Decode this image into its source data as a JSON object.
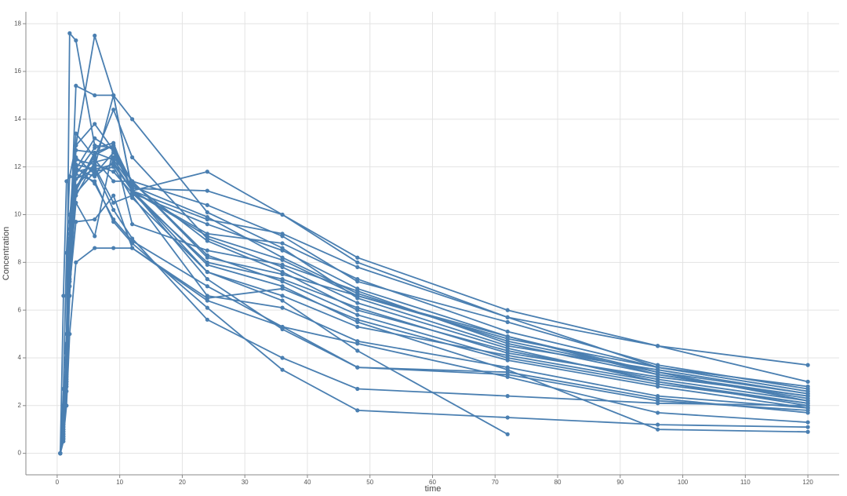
{
  "chart_data": {
    "type": "line",
    "x_label": "time",
    "y_label": "Concentration",
    "color": "#4a7fb1",
    "grid": true,
    "x": [
      0.5,
      1,
      1.5,
      2,
      3,
      6,
      9,
      12,
      24,
      36,
      48,
      72,
      96,
      120
    ],
    "xlim": [
      -5,
      125
    ],
    "xticks": [
      0,
      10,
      20,
      30,
      40,
      50,
      60,
      70,
      80,
      90,
      100,
      110,
      120
    ],
    "ylim": [
      -0.9,
      18.5
    ],
    "yticks": [
      0,
      2,
      4,
      6,
      8,
      10,
      12,
      14,
      16,
      18
    ],
    "series": [
      {
        "values": [
          0,
          6.6,
          11.4,
          11.6,
          11.5,
          12.3,
          11.4,
          11.4,
          8.2,
          7.5,
          6.6,
          4.9,
          3.3,
          2.4
        ]
      },
      {
        "values": [
          0,
          2.7,
          8.4,
          11.6,
          12.9,
          17.5,
          15,
          14,
          10.1,
          8.6,
          6.5,
          4.5,
          3.5,
          2.5
        ]
      },
      {
        "values": [
          0,
          1.0,
          3.6,
          8.4,
          15.4,
          15,
          15,
          11,
          9.8,
          9.2,
          7.8,
          5.7,
          3.6,
          2.8
        ]
      },
      {
        "values": [
          0,
          0.6,
          4.6,
          17.6,
          17.3,
          12.9,
          12.8,
          9.6,
          8.5,
          7.9,
          6.8,
          4.6,
          3.3,
          2.3
        ]
      },
      {
        "values": [
          0,
          2.0,
          3.3,
          9.7,
          13.4,
          12.4,
          14.4,
          12.4,
          9.0,
          7.8,
          6.3,
          4.4,
          3.0,
          2.1
        ]
      },
      {
        "values": [
          0,
          1.5,
          2.8,
          6.6,
          11.2,
          12.0,
          15,
          11,
          7.6,
          6.6,
          5.3,
          4.1,
          3.0,
          2.0
        ]
      },
      {
        "values": [
          0,
          0.5,
          2.6,
          8,
          12.7,
          12.6,
          12.9,
          10.9,
          8.0,
          7.3,
          6.1,
          4.2,
          3.2,
          2.4
        ]
      },
      {
        "values": [
          0,
          1.2,
          4,
          9,
          11.9,
          11.6,
          12.2,
          11,
          11.8,
          10,
          8.2,
          6,
          4.5,
          3.7
        ]
      },
      {
        "values": [
          0,
          0.8,
          3,
          7,
          9.7,
          9.8,
          10.8,
          8.6,
          6.5,
          6.9,
          5.6,
          3.9,
          2.8,
          1.9
        ]
      },
      {
        "values": [
          0,
          0.7,
          2,
          5,
          8,
          8.6,
          8.6,
          8.6,
          6.4,
          5.3,
          3.6,
          3.4,
          2.3,
          1.7
        ]
      },
      {
        "values": [
          0,
          1.1,
          4.5,
          9.2,
          12.9,
          13.8,
          12.7,
          11.4,
          10.4,
          9.1,
          7.2,
          5.5,
          3.7,
          2.7
        ]
      },
      {
        "values": [
          0,
          0.9,
          3.8,
          8.8,
          12.1,
          11.9,
          10.2,
          9.0,
          5.6,
          4.0,
          2.7,
          2.4,
          2.1,
          2.0
        ]
      },
      {
        "values": [
          0,
          1.3,
          5,
          10,
          11.7,
          11.4,
          9.7,
          8.8,
          6.1,
          3.5,
          1.8,
          1.5,
          1.2,
          1.1
        ]
      },
      {
        "values": [
          0,
          0.6,
          3,
          7.5,
          10.5,
          9.1,
          12.8,
          11,
          7.3,
          5.2,
          3.6,
          3.3,
          2.2,
          1.8
        ]
      },
      {
        "values": [
          0,
          1.4,
          4.2,
          8.6,
          11.9,
          13.2,
          12.7,
          11.0,
          9.2,
          8.8,
          7.3,
          5.1,
          3.6,
          2.6
        ]
      },
      {
        "values": [
          0,
          0.8,
          3.4,
          7.2,
          11.1,
          12.6,
          12.3,
          11.2,
          9.9,
          8.2,
          6.7,
          4.7,
          3.4,
          2.2
        ]
      },
      {
        "values": [
          0,
          1.0,
          3.9,
          8.1,
          12.4,
          11.7,
          12.6,
          11.1,
          11.0,
          10,
          8.0,
          5.7,
          4.5,
          3.0
        ]
      },
      {
        "values": [
          0,
          0.7,
          3.1,
          7.6,
          11.8,
          12.0,
          10.5,
          10.8,
          6.6,
          6.1,
          4.7,
          3.6,
          2.4,
          1.9
        ]
      },
      {
        "values": [
          0,
          1.2,
          4.4,
          9.4,
          12.0,
          11.3,
          9.8,
          8.9,
          7.0,
          5.3,
          4.6,
          3.2,
          1.7,
          1.3
        ]
      },
      {
        "values": [
          0,
          0.9,
          3.6,
          8.3,
          11.0,
          12.5,
          12.9,
          11.3,
          8.9,
          7.6,
          6.0,
          4.3,
          3.1,
          2.2
        ]
      },
      {
        "values": [
          0,
          1.1,
          4.0,
          8.7,
          11.5,
          11.9,
          12.1,
          11.0,
          9.1,
          8.1,
          6.6,
          4.8,
          3.6,
          2.6
        ]
      },
      {
        "values": [
          0,
          0.8,
          3.2,
          7.8,
          10.8,
          12.2,
          12.4,
          11.4,
          8.3,
          7.2,
          5.8,
          4.0,
          2.9,
          2.1
        ]
      },
      {
        "values": [
          0,
          1.0,
          3.7,
          8.5,
          11.7,
          12.8,
          13.0,
          11.0,
          7.9,
          7.0,
          5.5,
          3.5,
          1.0,
          0.9
        ]
      },
      {
        "values": [
          0,
          1.3,
          4.3,
          9.0,
          12.3,
          12.1,
          11.8,
          10.9,
          9.6,
          8.5,
          6.9,
          4.9,
          3.4,
          2.5
        ]
      },
      {
        "values": [
          0,
          0.7,
          2.9,
          7.3,
          10.9,
          11.8,
          12.0,
          10.7,
          7.6,
          6.4,
          4.3,
          0.8,
          null,
          null
        ]
      }
    ]
  }
}
